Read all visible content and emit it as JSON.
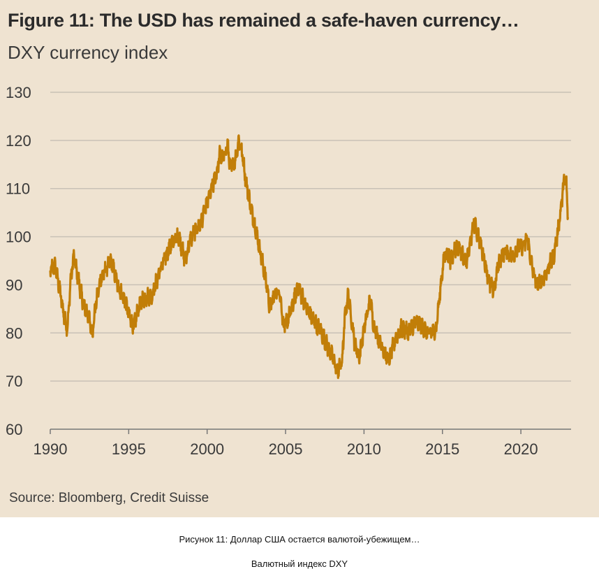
{
  "header": {
    "title": "Figure 11: The USD has remained a safe-haven currency…",
    "subtitle": "DXY currency index"
  },
  "source": "Source: Bloomberg, Credit Suisse",
  "captions": {
    "line1": "Рисунок 11: Доллар США остается валютой-убежищем…",
    "line2": "Валютный индекс DXY"
  },
  "colors": {
    "background": "#efe3d1",
    "line": "#c17e08",
    "grid": "#c9c1b6",
    "axis": "#777777"
  },
  "chart_data": {
    "type": "line",
    "title": "Figure 11: The USD has remained a safe-haven currency…",
    "subtitle": "DXY currency index",
    "xlabel": "",
    "ylabel": "",
    "xlim": [
      1990,
      2023.2
    ],
    "ylim": [
      60,
      130
    ],
    "y_ticks": [
      60,
      70,
      80,
      90,
      100,
      110,
      120,
      130
    ],
    "x_ticks": [
      1990,
      1995,
      2000,
      2005,
      2010,
      2015,
      2020
    ],
    "grid": true,
    "series": [
      {
        "name": "DXY",
        "x": [
          1990.0,
          1990.3,
          1990.6,
          1990.9,
          1991.1,
          1991.3,
          1991.5,
          1991.8,
          1992.1,
          1992.4,
          1992.7,
          1992.9,
          1993.2,
          1993.5,
          1993.9,
          1994.3,
          1994.7,
          1995.0,
          1995.3,
          1995.6,
          1995.9,
          1996.5,
          1997.0,
          1997.5,
          1997.8,
          1998.2,
          1998.6,
          1998.9,
          1999.2,
          1999.6,
          1999.9,
          2000.3,
          2000.6,
          2000.8,
          2001.0,
          2001.3,
          2001.5,
          2001.8,
          2002.0,
          2002.2,
          2002.5,
          2002.8,
          2003.2,
          2003.5,
          2003.8,
          2004.0,
          2004.3,
          2004.6,
          2004.9,
          2005.3,
          2005.8,
          2006.0,
          2006.5,
          2006.9,
          2007.3,
          2007.7,
          2008.0,
          2008.3,
          2008.6,
          2008.8,
          2009.0,
          2009.2,
          2009.4,
          2009.7,
          2009.9,
          2010.2,
          2010.4,
          2010.6,
          2010.9,
          2011.3,
          2011.6,
          2011.9,
          2012.4,
          2012.8,
          2013.2,
          2013.6,
          2014.0,
          2014.4,
          2014.6,
          2014.8,
          2015.0,
          2015.2,
          2015.5,
          2015.9,
          2016.2,
          2016.5,
          2016.8,
          2017.0,
          2017.3,
          2017.7,
          2018.0,
          2018.3,
          2018.6,
          2019.0,
          2019.5,
          2019.9,
          2020.2,
          2020.4,
          2020.7,
          2021.0,
          2021.4,
          2021.8,
          2022.1,
          2022.4,
          2022.6,
          2022.75,
          2022.9,
          2023.0
        ],
        "values": [
          93,
          94,
          89,
          83,
          81,
          91,
          96,
          91,
          86,
          84,
          80,
          86,
          91,
          93,
          95,
          90,
          87,
          84,
          81,
          85,
          87,
          88,
          93,
          97,
          99,
          100,
          95,
          99,
          101,
          103,
          106,
          110,
          113,
          117,
          116,
          119,
          114,
          116,
          120,
          118,
          111,
          106,
          100,
          95,
          90,
          85,
          88,
          89,
          81,
          84,
          90,
          88,
          84,
          82,
          80,
          77,
          75,
          72,
          74,
          84,
          88,
          83,
          78,
          75,
          79,
          84,
          87,
          82,
          79,
          76,
          74,
          78,
          81,
          80,
          82,
          82,
          80,
          80,
          81,
          87,
          93,
          97,
          95,
          98,
          97,
          94,
          99,
          103,
          100,
          95,
          90,
          89,
          95,
          97,
          96,
          98,
          98,
          100,
          94,
          90,
          91,
          94,
          96,
          102,
          107,
          112,
          111,
          104
        ]
      }
    ]
  }
}
